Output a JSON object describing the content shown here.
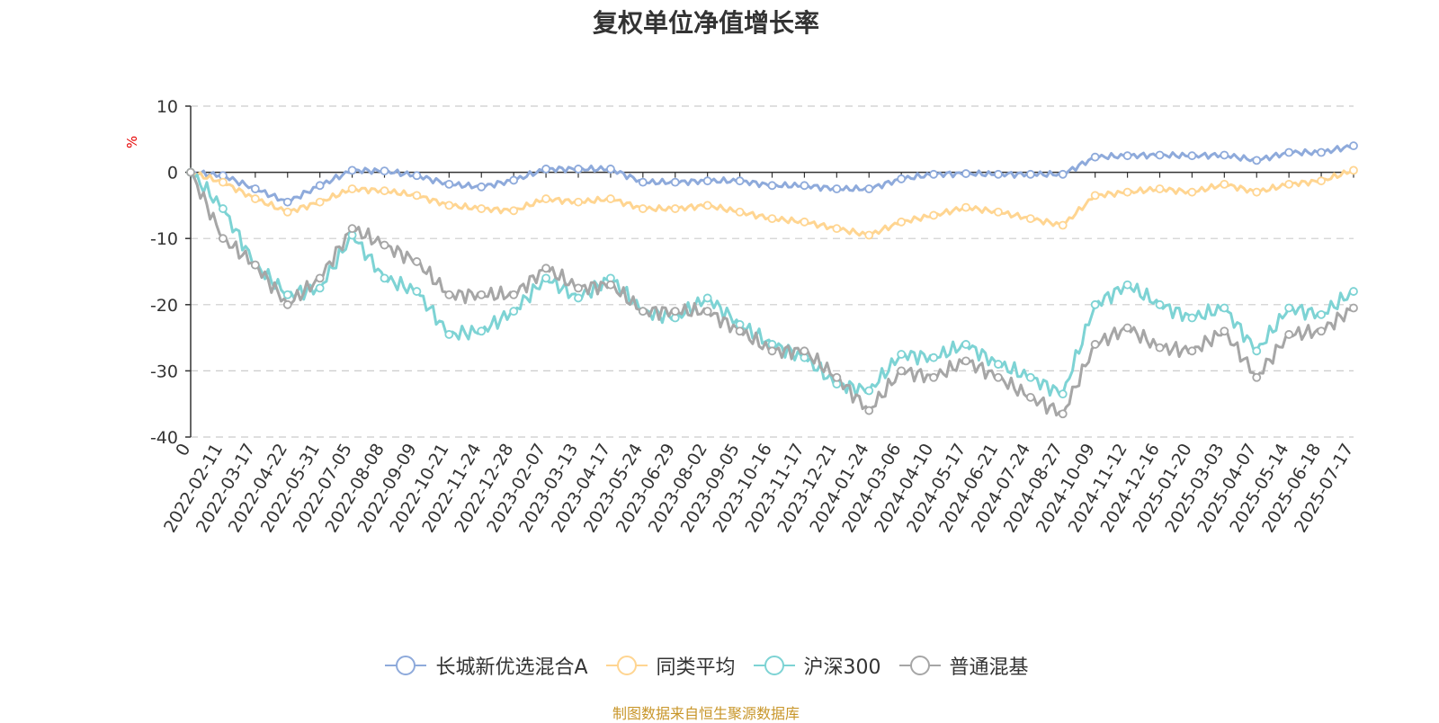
{
  "title": "复权单位净值增长率",
  "source_note": "制图数据来自恒生聚源数据库",
  "colors": {
    "axis": "#333333",
    "grid": "#cccccc",
    "unit": "#e60000",
    "source": "#c8962a"
  },
  "chart_data": {
    "type": "line",
    "title": "复权单位净值增长率",
    "ylabel": "%",
    "ylim": [
      -40,
      10
    ],
    "yticks": [
      10,
      0,
      -10,
      -20,
      -30,
      -40
    ],
    "grid": true,
    "legend": "bottom-center",
    "x": [
      "0",
      "2022-02-11",
      "2022-03-17",
      "2022-04-22",
      "2022-05-31",
      "2022-07-05",
      "2022-08-08",
      "2022-09-09",
      "2022-10-21",
      "2022-11-24",
      "2022-12-28",
      "2023-02-07",
      "2023-03-13",
      "2023-04-17",
      "2023-05-24",
      "2023-06-29",
      "2023-08-02",
      "2023-09-05",
      "2023-10-16",
      "2023-11-17",
      "2023-12-21",
      "2024-01-24",
      "2024-03-06",
      "2024-04-10",
      "2024-05-17",
      "2024-06-21",
      "2024-07-24",
      "2024-08-27",
      "2024-10-09",
      "2024-11-12",
      "2024-12-16",
      "2025-01-20",
      "2025-03-03",
      "2025-04-07",
      "2025-05-14",
      "2025-06-18",
      "2025-07-17"
    ],
    "series": [
      {
        "name": "长城新优选混合A",
        "color": "#8eaadb",
        "values": [
          0,
          -0.5,
          -2.5,
          -4.5,
          -2.0,
          0.3,
          0.2,
          -0.5,
          -1.8,
          -2.2,
          -1.2,
          0.5,
          0.5,
          0.5,
          -1.5,
          -1.5,
          -1.3,
          -1.3,
          -2.0,
          -2.0,
          -2.5,
          -2.5,
          -1.0,
          -0.3,
          -0.2,
          -0.3,
          -0.3,
          -0.3,
          2.3,
          2.5,
          2.6,
          2.5,
          2.6,
          1.8,
          3.0,
          3.0,
          4.0
        ]
      },
      {
        "name": "同类平均",
        "color": "#ffd591",
        "values": [
          0,
          -1.5,
          -4.0,
          -6.0,
          -4.5,
          -2.5,
          -2.8,
          -3.5,
          -5.0,
          -5.5,
          -5.8,
          -4.0,
          -4.5,
          -4.0,
          -5.5,
          -5.5,
          -5.0,
          -6.0,
          -7.0,
          -7.5,
          -8.5,
          -9.5,
          -7.5,
          -6.5,
          -5.3,
          -6.0,
          -7.0,
          -8.0,
          -3.5,
          -3.0,
          -2.5,
          -3.0,
          -1.8,
          -3.0,
          -1.8,
          -1.3,
          0.3
        ]
      },
      {
        "name": "沪深300",
        "color": "#7dd3d4",
        "values": [
          0,
          -5.5,
          -14.0,
          -18.5,
          -17.5,
          -9.5,
          -16.0,
          -18.0,
          -24.5,
          -24.0,
          -21.0,
          -16.0,
          -19.0,
          -16.0,
          -21.0,
          -22.0,
          -19.0,
          -23.0,
          -26.0,
          -28.0,
          -32.0,
          -33.0,
          -27.5,
          -28.0,
          -26.0,
          -29.0,
          -31.0,
          -33.5,
          -20.0,
          -17.0,
          -20.0,
          -22.0,
          -20.5,
          -27.0,
          -20.5,
          -21.5,
          -18.0
        ]
      },
      {
        "name": "普通混基",
        "color": "#a6a6a6",
        "values": [
          0,
          -10.0,
          -14.0,
          -20.0,
          -16.0,
          -8.5,
          -11.0,
          -13.5,
          -18.5,
          -18.5,
          -18.5,
          -14.5,
          -17.5,
          -17.0,
          -21.0,
          -21.0,
          -21.0,
          -24.0,
          -27.0,
          -27.0,
          -31.0,
          -36.0,
          -30.0,
          -31.0,
          -28.5,
          -31.0,
          -34.0,
          -36.5,
          -26.0,
          -23.5,
          -26.5,
          -27.0,
          -24.0,
          -31.0,
          -24.5,
          -24.0,
          -20.5
        ]
      }
    ]
  }
}
